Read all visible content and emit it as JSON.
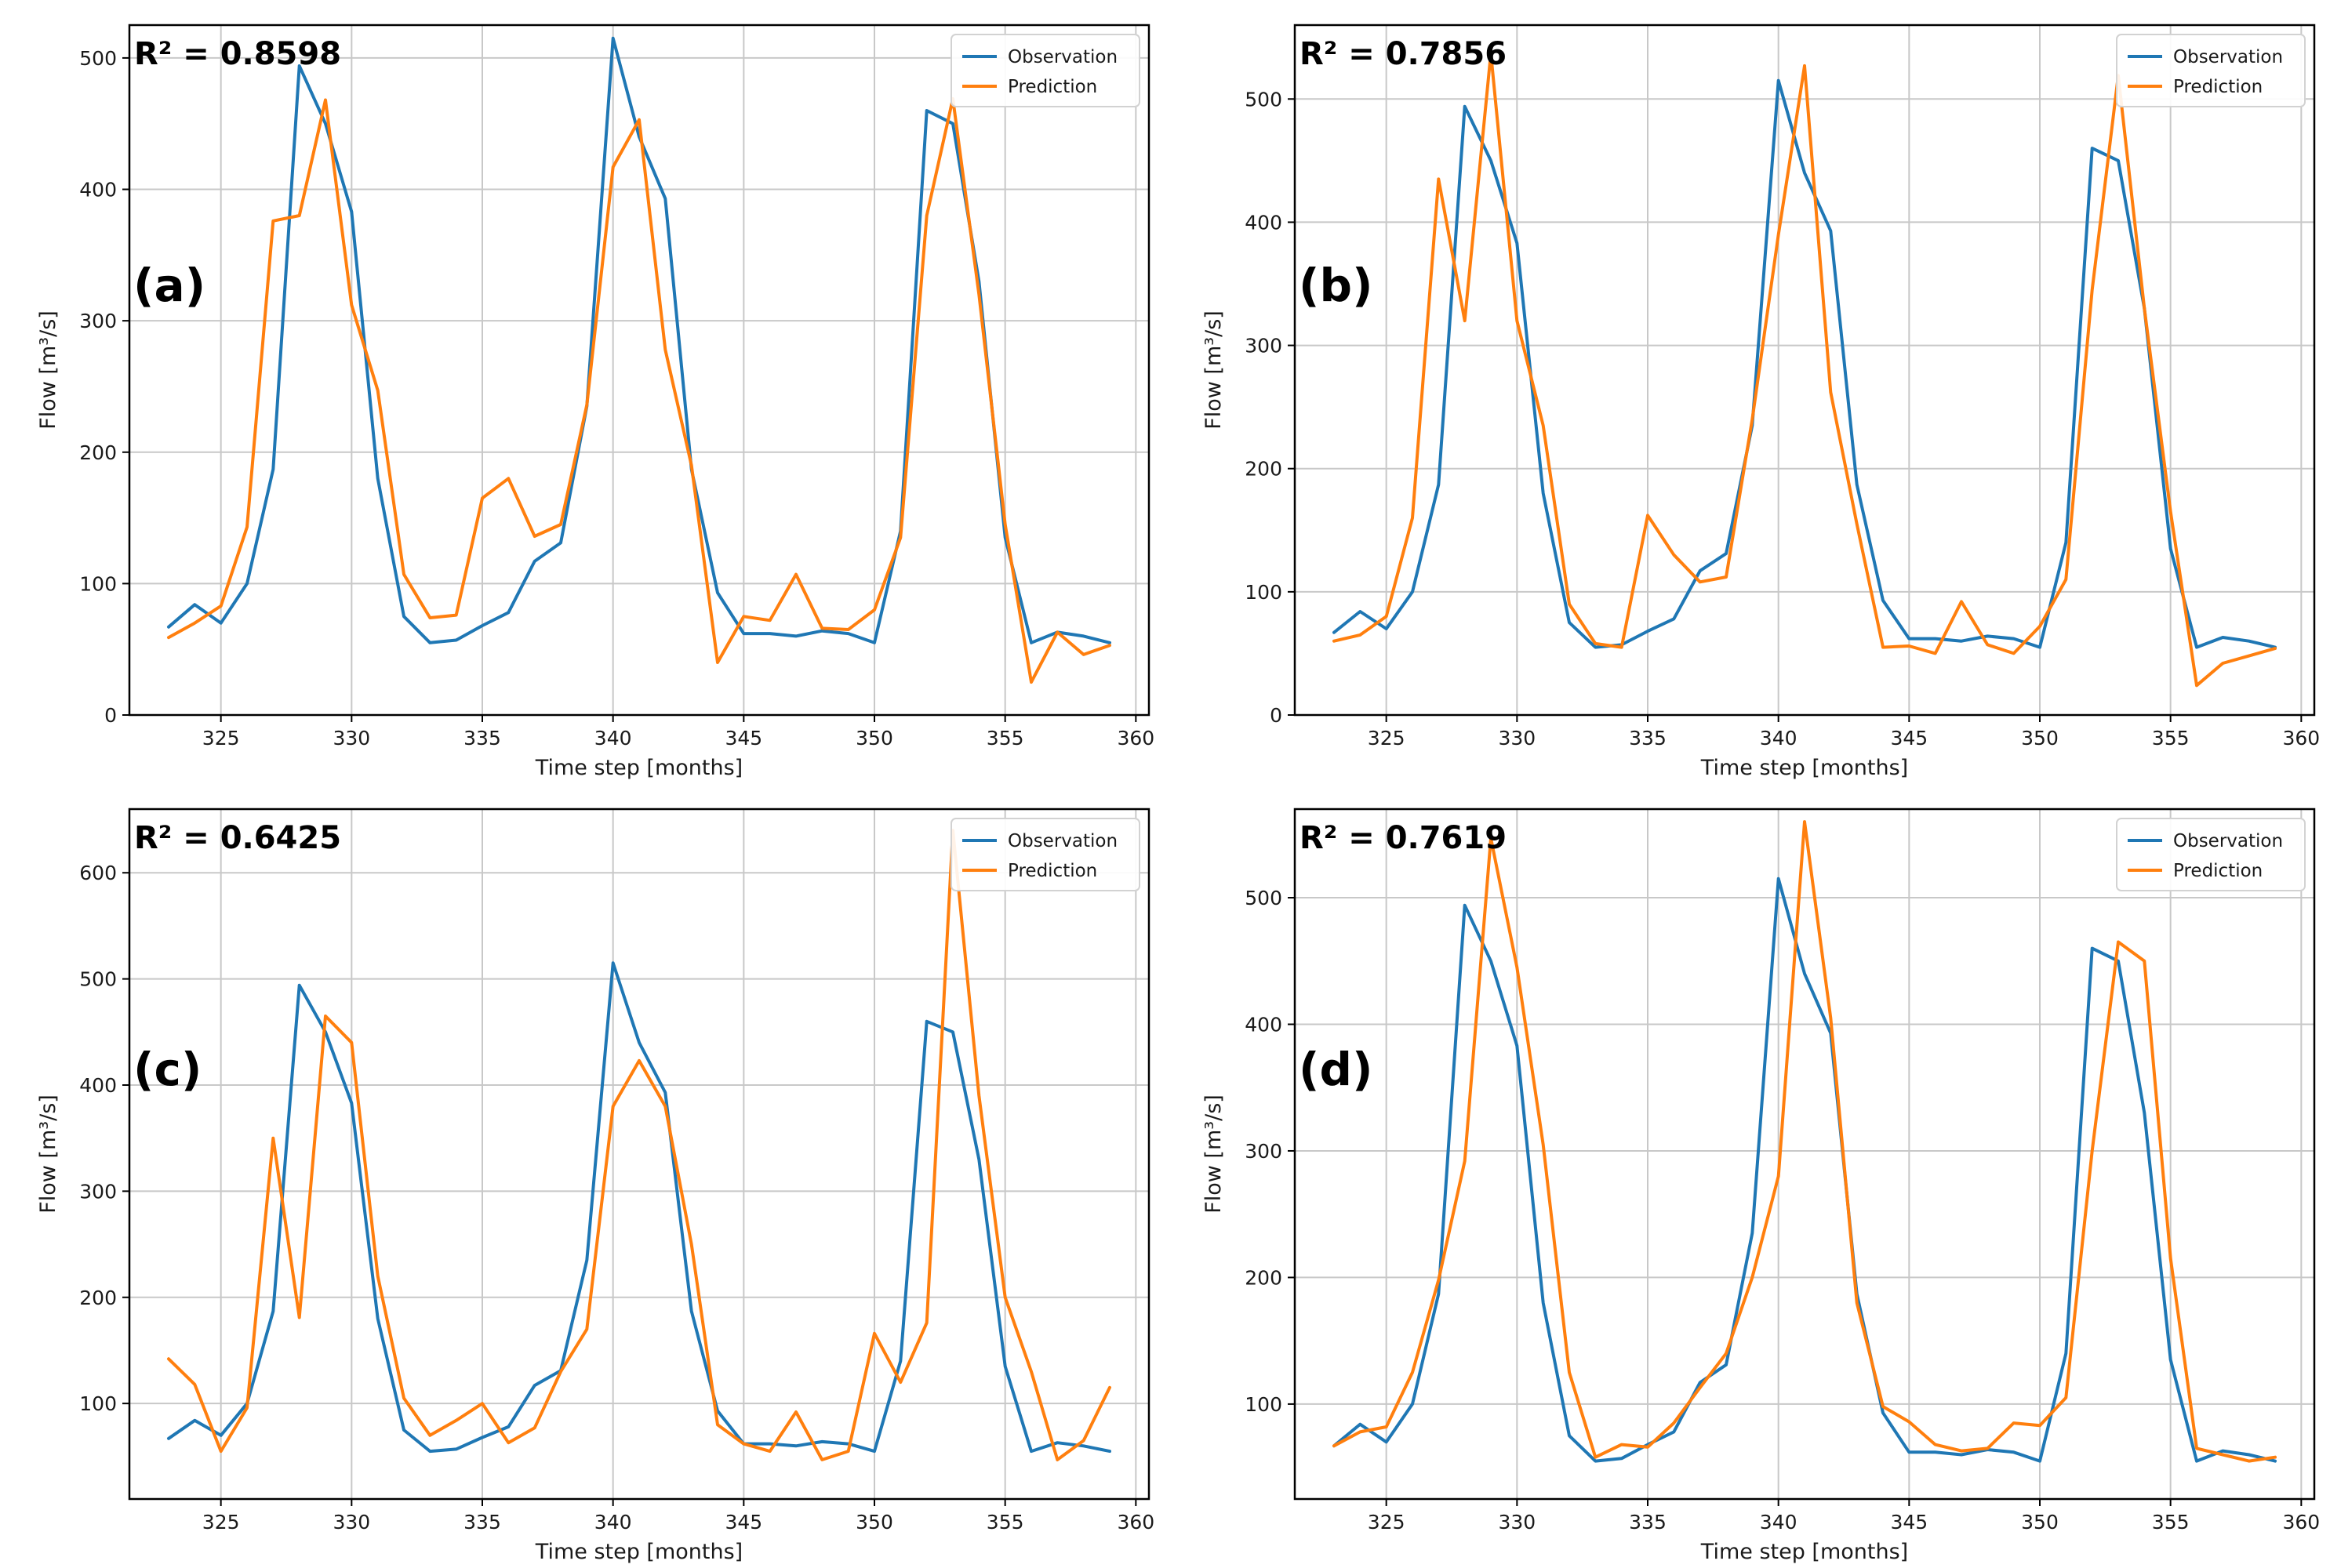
{
  "colors": {
    "observation": "#1f77b4",
    "prediction": "#ff7f0e"
  },
  "chart_data": [
    {
      "type": "line",
      "panel_label": "(a)",
      "r2_text": "R² = 0.8598",
      "xlabel": "Time step [months]",
      "ylabel": "Flow [m³/s]",
      "xlim": [
        321.5,
        360.5
      ],
      "ylim": [
        0,
        525
      ],
      "xticks": [
        325,
        330,
        335,
        340,
        345,
        350,
        355,
        360
      ],
      "yticks": [
        0,
        100,
        200,
        300,
        400,
        500
      ],
      "legend_position": "top-right",
      "x": [
        323,
        324,
        325,
        326,
        327,
        328,
        329,
        330,
        331,
        332,
        333,
        334,
        335,
        336,
        337,
        338,
        339,
        340,
        341,
        342,
        343,
        344,
        345,
        346,
        347,
        348,
        349,
        350,
        351,
        352,
        353,
        354,
        355,
        356,
        357,
        358,
        359
      ],
      "series": [
        {
          "name": "Observation",
          "values": [
            67,
            84,
            70,
            100,
            187,
            494,
            450,
            383,
            180,
            75,
            55,
            57,
            68,
            78,
            117,
            131,
            235,
            515,
            440,
            393,
            187,
            93,
            62,
            62,
            60,
            64,
            62,
            55,
            140,
            460,
            450,
            330,
            135,
            55,
            63,
            60,
            55
          ]
        },
        {
          "name": "Prediction",
          "values": [
            59,
            70,
            83,
            143,
            376,
            380,
            468,
            312,
            247,
            107,
            74,
            76,
            165,
            180,
            136,
            145,
            236,
            417,
            453,
            278,
            190,
            40,
            75,
            72,
            107,
            66,
            65,
            80,
            135,
            380,
            469,
            320,
            145,
            25,
            63,
            46,
            53
          ]
        }
      ]
    },
    {
      "type": "line",
      "panel_label": "(b)",
      "r2_text": "R² = 0.7856",
      "xlabel": "Time step [months]",
      "ylabel": "Flow [m³/s]",
      "xlim": [
        321.5,
        360.5
      ],
      "ylim": [
        0,
        560
      ],
      "xticks": [
        325,
        330,
        335,
        340,
        345,
        350,
        355,
        360
      ],
      "yticks": [
        0,
        100,
        200,
        300,
        400,
        500
      ],
      "legend_position": "top-right",
      "x": [
        323,
        324,
        325,
        326,
        327,
        328,
        329,
        330,
        331,
        332,
        333,
        334,
        335,
        336,
        337,
        338,
        339,
        340,
        341,
        342,
        343,
        344,
        345,
        346,
        347,
        348,
        349,
        350,
        351,
        352,
        353,
        354,
        355,
        356,
        357,
        358,
        359
      ],
      "series": [
        {
          "name": "Observation",
          "values": [
            67,
            84,
            70,
            100,
            187,
            494,
            450,
            383,
            180,
            75,
            55,
            57,
            68,
            78,
            117,
            131,
            235,
            515,
            440,
            393,
            187,
            93,
            62,
            62,
            60,
            64,
            62,
            55,
            140,
            460,
            450,
            330,
            135,
            55,
            63,
            60,
            55
          ]
        },
        {
          "name": "Prediction",
          "values": [
            60,
            65,
            80,
            160,
            435,
            320,
            537,
            320,
            235,
            90,
            58,
            55,
            162,
            130,
            108,
            112,
            240,
            390,
            527,
            262,
            155,
            55,
            56,
            50,
            92,
            57,
            50,
            72,
            110,
            345,
            519,
            330,
            165,
            24,
            42,
            48,
            54
          ]
        }
      ]
    },
    {
      "type": "line",
      "panel_label": "(c)",
      "r2_text": "R² = 0.6425",
      "xlabel": "Time step [months]",
      "ylabel": "Flow [m³/s]",
      "xlim": [
        321.5,
        360.5
      ],
      "ylim": [
        10,
        660
      ],
      "xticks": [
        325,
        330,
        335,
        340,
        345,
        350,
        355,
        360
      ],
      "yticks": [
        100,
        200,
        300,
        400,
        500,
        600
      ],
      "legend_position": "top-right",
      "x": [
        323,
        324,
        325,
        326,
        327,
        328,
        329,
        330,
        331,
        332,
        333,
        334,
        335,
        336,
        337,
        338,
        339,
        340,
        341,
        342,
        343,
        344,
        345,
        346,
        347,
        348,
        349,
        350,
        351,
        352,
        353,
        354,
        355,
        356,
        357,
        358,
        359
      ],
      "series": [
        {
          "name": "Observation",
          "values": [
            67,
            84,
            70,
            100,
            187,
            494,
            450,
            383,
            180,
            75,
            55,
            57,
            68,
            78,
            117,
            131,
            235,
            515,
            440,
            393,
            187,
            93,
            62,
            62,
            60,
            64,
            62,
            55,
            140,
            460,
            450,
            330,
            135,
            55,
            63,
            60,
            55
          ]
        },
        {
          "name": "Prediction",
          "values": [
            142,
            118,
            55,
            96,
            350,
            181,
            465,
            440,
            220,
            105,
            70,
            84,
            100,
            63,
            77,
            130,
            170,
            380,
            423,
            380,
            250,
            80,
            62,
            55,
            92,
            47,
            55,
            166,
            120,
            176,
            640,
            390,
            200,
            130,
            47,
            65,
            115
          ]
        }
      ]
    },
    {
      "type": "line",
      "panel_label": "(d)",
      "r2_text": "R² = 0.7619",
      "xlabel": "Time step [months]",
      "ylabel": "Flow [m³/s]",
      "xlim": [
        321.5,
        360.5
      ],
      "ylim": [
        25,
        570
      ],
      "xticks": [
        325,
        330,
        335,
        340,
        345,
        350,
        355,
        360
      ],
      "yticks": [
        100,
        200,
        300,
        400,
        500
      ],
      "legend_position": "top-right",
      "x": [
        323,
        324,
        325,
        326,
        327,
        328,
        329,
        330,
        331,
        332,
        333,
        334,
        335,
        336,
        337,
        338,
        339,
        340,
        341,
        342,
        343,
        344,
        345,
        346,
        347,
        348,
        349,
        350,
        351,
        352,
        353,
        354,
        355,
        356,
        357,
        358,
        359
      ],
      "series": [
        {
          "name": "Observation",
          "values": [
            67,
            84,
            70,
            100,
            187,
            494,
            450,
            383,
            180,
            75,
            55,
            57,
            68,
            78,
            117,
            131,
            235,
            515,
            440,
            393,
            187,
            93,
            62,
            62,
            60,
            64,
            62,
            55,
            140,
            460,
            450,
            330,
            135,
            55,
            63,
            60,
            55
          ]
        },
        {
          "name": "Prediction",
          "values": [
            67,
            78,
            82,
            125,
            198,
            292,
            547,
            445,
            305,
            125,
            58,
            68,
            66,
            85,
            113,
            140,
            200,
            280,
            560,
            405,
            180,
            98,
            86,
            68,
            63,
            65,
            85,
            83,
            105,
            300,
            465,
            450,
            215,
            65,
            60,
            55,
            58
          ]
        }
      ]
    }
  ]
}
